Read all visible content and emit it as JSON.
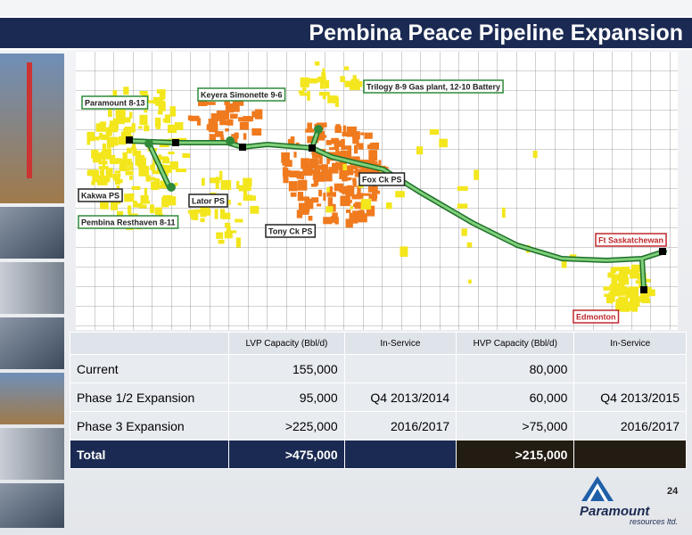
{
  "header": {
    "title": "Pembina Peace Pipeline Expansion"
  },
  "map": {
    "labels": [
      {
        "text": "Paramount 8-13",
        "kind": "facility"
      },
      {
        "text": "Keyera Simonette 9-6",
        "kind": "facility"
      },
      {
        "text": "Trilogy 8-9 Gas plant, 12-10 Battery",
        "kind": "facility"
      },
      {
        "text": "Kakwa PS",
        "kind": "station"
      },
      {
        "text": "Lator PS",
        "kind": "station"
      },
      {
        "text": "Fox Ck PS",
        "kind": "station"
      },
      {
        "text": "Tony Ck PS",
        "kind": "station"
      },
      {
        "text": "Pembina Resthaven 8-11",
        "kind": "facility"
      },
      {
        "text": "Ft Saskatchewan",
        "kind": "terminal"
      },
      {
        "text": "Edmonton",
        "kind": "terminal"
      }
    ]
  },
  "table": {
    "columns": [
      "LVP Capacity (Bbl/d)",
      "In-Service",
      "HVP Capacity (Bbl/d)",
      "In-Service"
    ],
    "rows": [
      [
        "Current",
        "155,000",
        null,
        "80,000",
        null
      ],
      [
        "Phase 1/2  Expansion",
        "95,000",
        "Q4 2013/2014",
        "60,000",
        "Q4 2013/2015"
      ],
      [
        "Phase 3 Expansion",
        ">225,000",
        "2016/2017",
        ">75,000",
        "2016/2017"
      ]
    ],
    "total": [
      "Total",
      ">475,000",
      null,
      ">215,000",
      null
    ]
  },
  "footer": {
    "page": "24",
    "logo": "Paramount",
    "logo_sub": "resources ltd."
  }
}
